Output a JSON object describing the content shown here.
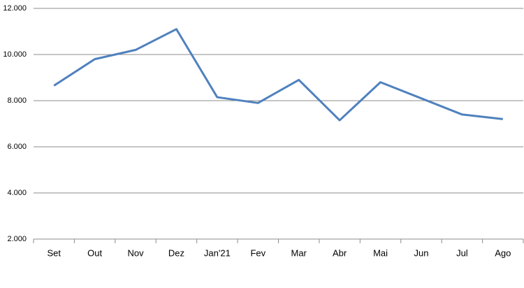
{
  "chart_data": {
    "type": "line",
    "categories": [
      "Set",
      "Out",
      "Nov",
      "Dez",
      "Jan'21",
      "Fev",
      "Mar",
      "Abr",
      "Mai",
      "Jun",
      "Jul",
      "Ago"
    ],
    "values": [
      8650,
      9800,
      10200,
      11100,
      8150,
      7900,
      8900,
      7150,
      8800,
      8100,
      7400,
      7200
    ],
    "color": "#4f81bd",
    "ylim": [
      2000,
      12000
    ],
    "yticks": [
      {
        "value": 2000,
        "label": "2.000"
      },
      {
        "value": 4000,
        "label": "4.000"
      },
      {
        "value": 6000,
        "label": "6.000"
      },
      {
        "value": 8000,
        "label": "8.000"
      },
      {
        "value": 10000,
        "label": "10.000"
      },
      {
        "value": 12000,
        "label": "12.000"
      }
    ],
    "grid": true
  }
}
